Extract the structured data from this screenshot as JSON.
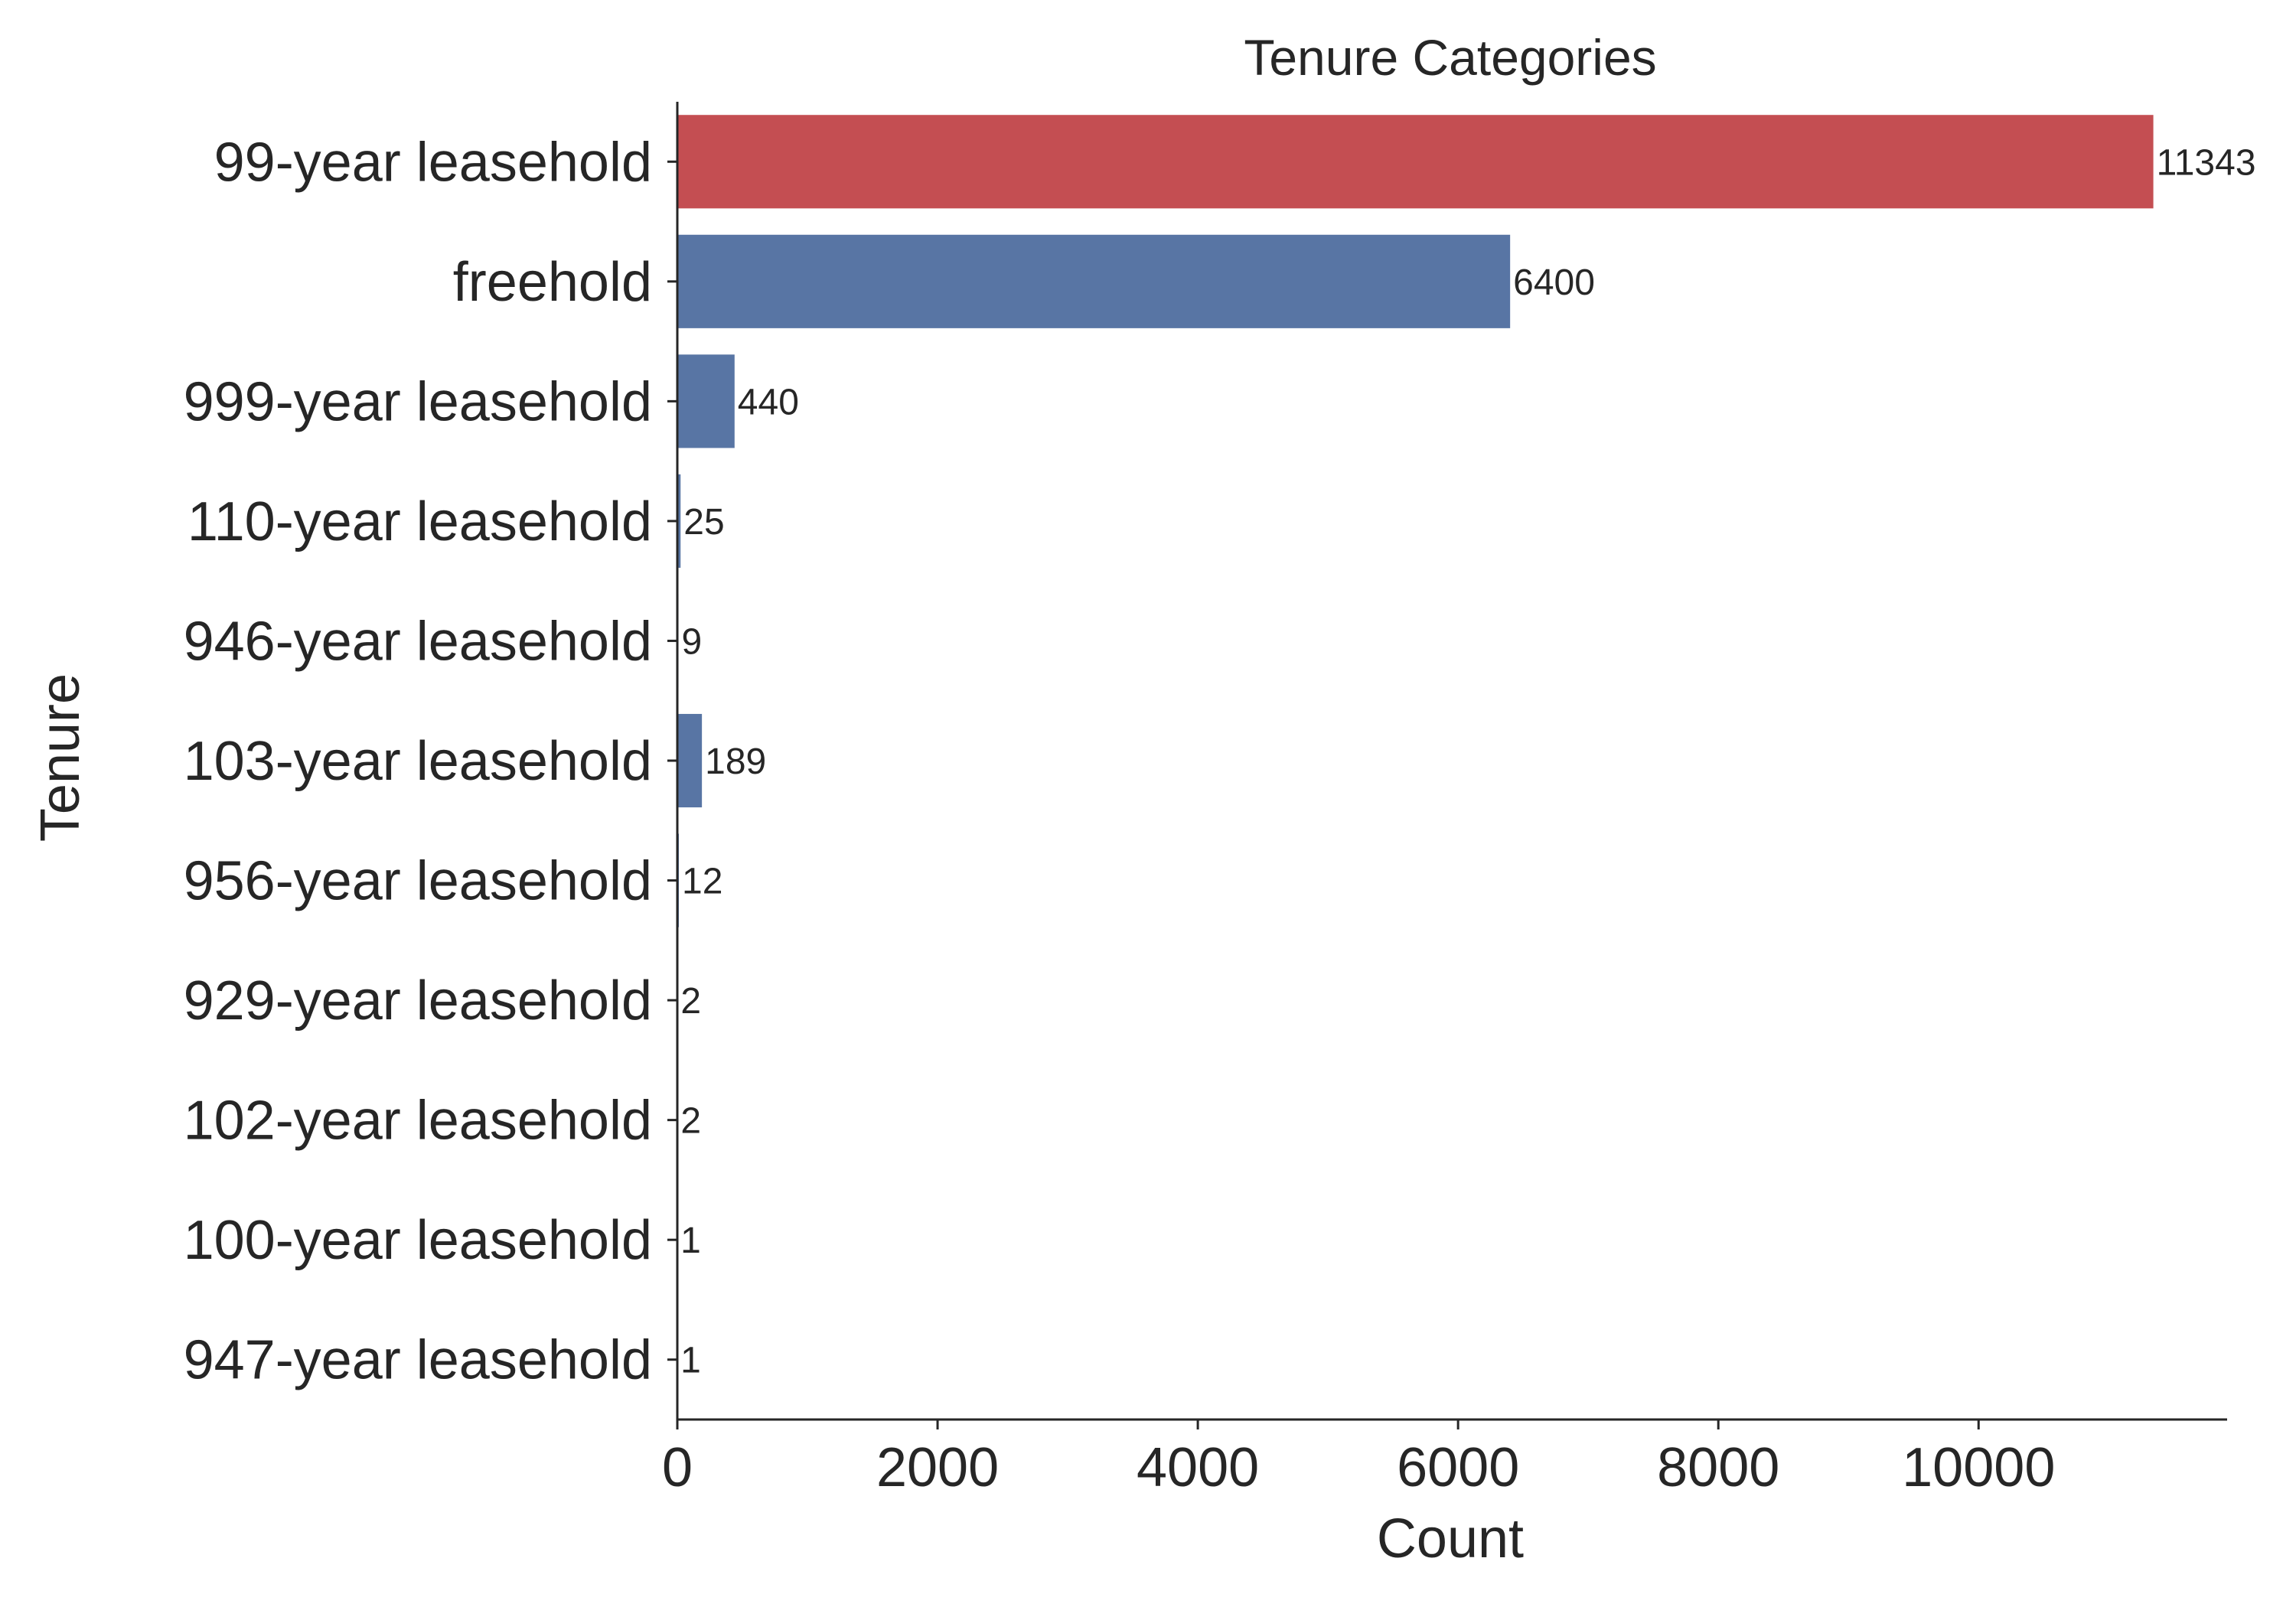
{
  "chart_data": {
    "type": "bar",
    "orientation": "horizontal",
    "title": "Tenure Categories",
    "xlabel": "Count",
    "ylabel": "Tenure",
    "categories": [
      "99-year leasehold",
      "freehold",
      "999-year leasehold",
      "110-year leasehold",
      "946-year leasehold",
      "103-year leasehold",
      "956-year leasehold",
      "929-year leasehold",
      "102-year leasehold",
      "100-year leasehold",
      "947-year leasehold"
    ],
    "values": [
      11343,
      6400,
      440,
      25,
      9,
      189,
      12,
      2,
      2,
      1,
      1
    ],
    "data_labels": [
      "11343",
      "6400",
      "440",
      "25",
      "9",
      "189",
      "12",
      "2",
      "2",
      "1",
      "1"
    ],
    "xlim": [
      0,
      11910
    ],
    "xticks": [
      0,
      2000,
      4000,
      6000,
      8000,
      10000
    ],
    "xtick_labels": [
      "0",
      "2000",
      "4000",
      "6000",
      "8000",
      "10000"
    ],
    "grid": false,
    "legend": "none",
    "colors": {
      "highlight": "#c44e52",
      "default": "#5875a4",
      "text": "#262626"
    },
    "highlight_index": 0
  }
}
